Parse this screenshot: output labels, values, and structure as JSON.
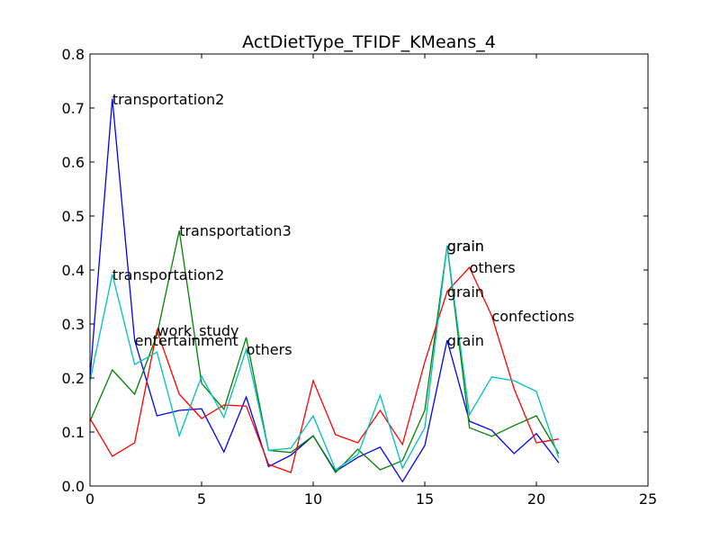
{
  "chart_data": {
    "type": "line",
    "title": "ActDietType_TFIDF_KMeans_4",
    "xlabel": "",
    "ylabel": "",
    "xlim": [
      0,
      25
    ],
    "ylim": [
      0,
      0.8
    ],
    "xticks": [
      0,
      5,
      10,
      15,
      20,
      25
    ],
    "yticks": [
      0.0,
      0.1,
      0.2,
      0.3,
      0.4,
      0.5,
      0.6,
      0.7,
      0.8
    ],
    "xtick_labels": [
      "0",
      "5",
      "10",
      "15",
      "20",
      "25"
    ],
    "ytick_labels": [
      "0.0",
      "0.1",
      "0.2",
      "0.3",
      "0.4",
      "0.5",
      "0.6",
      "0.7",
      "0.8"
    ],
    "grid": false,
    "x": [
      0,
      1,
      2,
      3,
      4,
      5,
      6,
      7,
      8,
      9,
      10,
      11,
      12,
      13,
      14,
      15,
      16,
      17,
      18,
      19,
      20,
      21
    ],
    "series": [
      {
        "color": "#0000ff",
        "values": [
          0.2,
          0.717,
          0.27,
          0.13,
          0.14,
          0.143,
          0.063,
          0.165,
          0.036,
          0.057,
          0.093,
          0.027,
          0.053,
          0.072,
          0.008,
          0.075,
          0.27,
          0.12,
          0.103,
          0.06,
          0.097,
          0.043
        ]
      },
      {
        "color": "#008000",
        "values": [
          0.12,
          0.215,
          0.17,
          0.28,
          0.473,
          0.19,
          0.142,
          0.275,
          0.066,
          0.062,
          0.093,
          0.025,
          0.068,
          0.03,
          0.047,
          0.14,
          0.445,
          0.108,
          0.092,
          0.112,
          0.13,
          0.06
        ]
      },
      {
        "color": "#ff0000",
        "values": [
          0.125,
          0.055,
          0.08,
          0.288,
          0.17,
          0.125,
          0.15,
          0.148,
          0.04,
          0.025,
          0.195,
          0.095,
          0.08,
          0.14,
          0.077,
          0.23,
          0.36,
          0.405,
          0.315,
          0.18,
          0.08,
          0.087
        ]
      },
      {
        "color": "#00bfbf",
        "values": [
          0.195,
          0.392,
          0.225,
          0.248,
          0.093,
          0.203,
          0.127,
          0.253,
          0.066,
          0.07,
          0.13,
          0.03,
          0.058,
          0.168,
          0.033,
          0.108,
          0.445,
          0.132,
          0.202,
          0.195,
          0.175,
          0.052
        ]
      }
    ],
    "annotations": [
      {
        "text": "transportation2",
        "x": 1,
        "y": 0.717
      },
      {
        "text": "transportation2",
        "x": 1,
        "y": 0.392
      },
      {
        "text": "transportation3",
        "x": 4,
        "y": 0.473
      },
      {
        "text": "work_study",
        "x": 3,
        "y": 0.288
      },
      {
        "text": "entertainment",
        "x": 2,
        "y": 0.27
      },
      {
        "text": "others",
        "x": 7,
        "y": 0.253
      },
      {
        "text": "grain",
        "x": 16,
        "y": 0.445
      },
      {
        "text": "grain",
        "x": 16,
        "y": 0.445
      },
      {
        "text": "grain",
        "x": 16,
        "y": 0.36
      },
      {
        "text": "grain",
        "x": 16,
        "y": 0.27
      },
      {
        "text": "others",
        "x": 17,
        "y": 0.405
      },
      {
        "text": "confections",
        "x": 18,
        "y": 0.315
      }
    ]
  }
}
